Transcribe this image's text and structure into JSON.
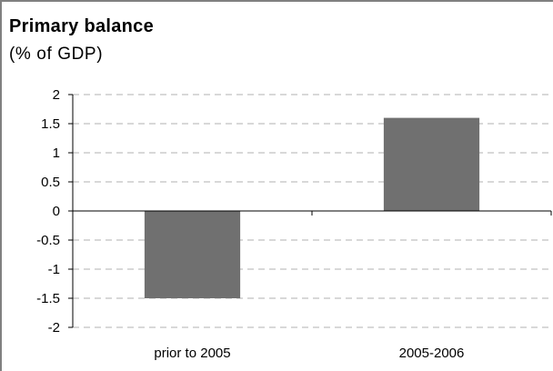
{
  "chart_data": {
    "type": "bar",
    "title": "Primary balance",
    "subtitle": "(% of GDP)",
    "categories": [
      "prior to 2005",
      "2005-2006"
    ],
    "values": [
      -1.5,
      1.6
    ],
    "ylim": [
      -2,
      2
    ],
    "yticks": [
      2,
      1.5,
      1,
      0.5,
      0,
      -0.5,
      -1,
      -1.5,
      -2
    ],
    "ytick_labels": [
      "2",
      "1.5",
      "1",
      "0.5",
      "0",
      "-0.5",
      "-1",
      "-1.5",
      "-2"
    ],
    "grid": true,
    "bar_color": "#707070",
    "xlabel": "",
    "ylabel": ""
  }
}
